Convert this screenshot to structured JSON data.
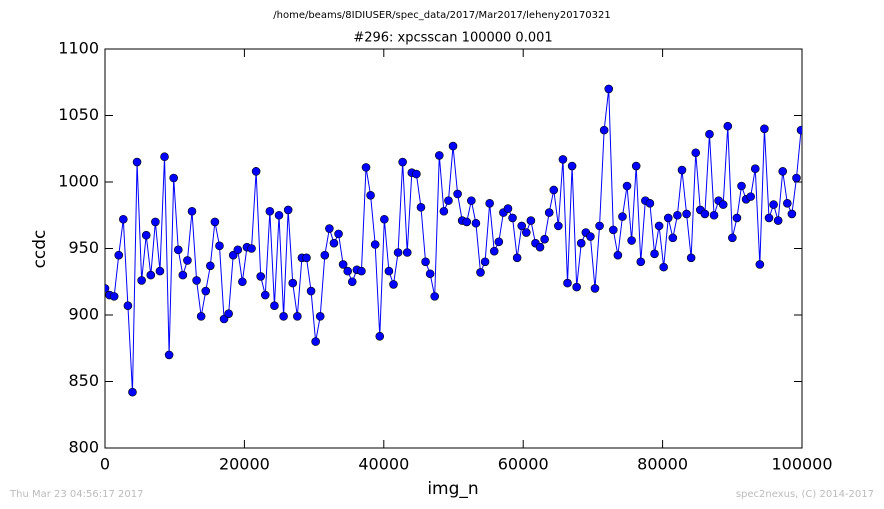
{
  "chart_data": {
    "type": "line",
    "suptitle": "/home/beams/8IDIUSER/spec_data/2017/Mar2017/leheny20170321",
    "title": "#296: xpcsscan 100000 0.001",
    "x_label": "img_n",
    "y_label": "ccdc",
    "footer_left": "Thu Mar 23 04:56:17 2017",
    "footer_right": "spec2nexus, (C) 2014-2017",
    "xlim": [
      0,
      100000
    ],
    "ylim": [
      800,
      1100
    ],
    "xticks": [
      0,
      20000,
      40000,
      60000,
      80000,
      100000
    ],
    "yticks": [
      800,
      850,
      900,
      950,
      1000,
      1050,
      1100
    ],
    "grid": false,
    "series": [
      {
        "name": "ccdc",
        "color": "#0000ff",
        "x": [
          0,
          657,
          1314,
          1971,
          2628,
          3285,
          3942,
          4599,
          5256,
          5913,
          6570,
          7227,
          7884,
          8541,
          9198,
          9855,
          10512,
          11169,
          11826,
          12483,
          13140,
          13797,
          14454,
          15111,
          15768,
          16425,
          17082,
          17739,
          18396,
          19053,
          19710,
          20367,
          21024,
          21681,
          22338,
          22995,
          23652,
          24309,
          24966,
          25623,
          26280,
          26937,
          27594,
          28251,
          28908,
          29565,
          30222,
          30879,
          31536,
          32193,
          32850,
          33507,
          34164,
          34821,
          35478,
          36135,
          36792,
          37449,
          38106,
          38763,
          39420,
          40077,
          40734,
          41391,
          42048,
          42705,
          43362,
          44019,
          44676,
          45333,
          45990,
          46647,
          47304,
          47961,
          48618,
          49275,
          49932,
          50589,
          51246,
          51903,
          52560,
          53217,
          53874,
          54531,
          55188,
          55845,
          56502,
          57159,
          57816,
          58473,
          59130,
          59787,
          60444,
          61101,
          61758,
          62415,
          63072,
          63729,
          64386,
          65043,
          65700,
          66357,
          67014,
          67671,
          68328,
          68985,
          69642,
          70299,
          70956,
          71613,
          72270,
          72927,
          73584,
          74241,
          74898,
          75555,
          76212,
          76869,
          77526,
          78183,
          78840,
          79497,
          80154,
          80811,
          81468,
          82125,
          82782,
          83439,
          84096,
          84753,
          85410,
          86067,
          86724,
          87381,
          88038,
          88695,
          89352,
          90009,
          90666,
          91323,
          91980,
          92637,
          93294,
          93951,
          94608,
          95265,
          95922,
          96579,
          97236,
          97893,
          98550,
          99207,
          99864
        ],
        "values": [
          920,
          915,
          914,
          945,
          972,
          907,
          842,
          1015,
          926,
          960,
          930,
          970,
          933,
          1019,
          870,
          1003,
          949,
          930,
          941,
          978,
          926,
          899,
          918,
          937,
          970,
          952,
          897,
          901,
          945,
          949,
          925,
          951,
          950,
          1008,
          929,
          915,
          978,
          907,
          975,
          899,
          979,
          924,
          899,
          943,
          943,
          918,
          880,
          899,
          945,
          965,
          954,
          961,
          938,
          933,
          925,
          934,
          933,
          1011,
          990,
          953,
          884,
          972,
          933,
          923,
          947,
          1015,
          947,
          1007,
          1006,
          981,
          940,
          931,
          914,
          1020,
          978,
          986,
          1027,
          991,
          971,
          970,
          986,
          969,
          932,
          940,
          984,
          948,
          955,
          977,
          980,
          973,
          943,
          967,
          962,
          971,
          954,
          951,
          957,
          977,
          994,
          967,
          1017,
          924,
          1012,
          921,
          954,
          962,
          959,
          920,
          967,
          1039,
          1070,
          964,
          945,
          974,
          997,
          956,
          1012,
          940,
          986,
          984,
          946,
          967,
          936,
          973,
          958,
          975,
          1009,
          976,
          943,
          1022,
          979,
          976,
          1036,
          975,
          986,
          983,
          1042,
          958,
          973,
          997,
          987,
          989,
          1010,
          938,
          1040,
          973,
          983,
          971,
          1008,
          984,
          976,
          1003,
          1039
        ]
      }
    ]
  }
}
